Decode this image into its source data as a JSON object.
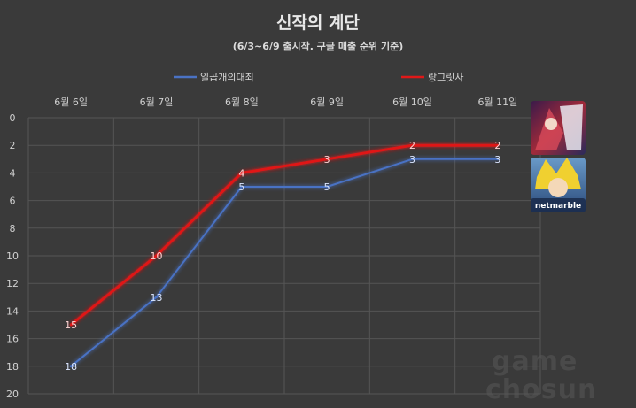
{
  "chart_data": {
    "type": "line",
    "title": "신작의 계단",
    "subtitle": "(6/3~6/9 출시작. 구글 매출 순위 기준)",
    "categories": [
      "6월 6일",
      "6월 7일",
      "6월 8일",
      "6월 9일",
      "6월 10일",
      "6월 11일"
    ],
    "y_ticks": [
      "0",
      "2",
      "4",
      "6",
      "8",
      "10",
      "12",
      "14",
      "16",
      "18",
      "20"
    ],
    "ylim": [
      0,
      20
    ],
    "y_inverted": true,
    "grid": true,
    "legend_position": "top",
    "series": [
      {
        "name": "일곱개의대죄",
        "values": [
          18,
          13,
          5,
          5,
          3,
          3
        ],
        "color": "#4a72c4"
      },
      {
        "name": "랑그릿사",
        "values": [
          15,
          10,
          4,
          3,
          2,
          2
        ],
        "color": "#e01818"
      }
    ]
  },
  "icons": {
    "langrisser": "langrisser-game-icon",
    "seven_deadly_sins": "seven-deadly-sins-game-icon",
    "seven_deadly_sins_text": "netmarble"
  },
  "watermark": {
    "line1": "game",
    "line2": "chosun"
  },
  "colors": {
    "background": "#3a3a3a",
    "grid": "#555555"
  }
}
